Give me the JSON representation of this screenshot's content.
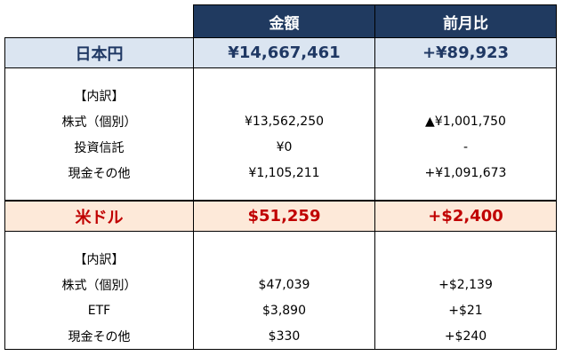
{
  "header": {
    "amount": "金額",
    "change": "前月比"
  },
  "jpy": {
    "label": "日本円",
    "amount": "¥14,667,461",
    "change": "+¥89,923",
    "breakdown_label": "【内訳】",
    "rows": [
      {
        "label": "株式（個別）",
        "amount": "¥13,562,250",
        "change": "▲¥1,001,750"
      },
      {
        "label": "投資信託",
        "amount": "¥0",
        "change": "-"
      },
      {
        "label": "現金その他",
        "amount": "¥1,105,211",
        "change": "+¥1,091,673"
      }
    ]
  },
  "usd": {
    "label": "米ドル",
    "amount": "$51,259",
    "change": "+$2,400",
    "breakdown_label": "【内訳】",
    "rows": [
      {
        "label": "株式（個別）",
        "amount": "$47,039",
        "change": "+$2,139"
      },
      {
        "label": "ETF",
        "amount": "$3,890",
        "change": "+$21"
      },
      {
        "label": "現金その他",
        "amount": "$330",
        "change": "+$240"
      }
    ]
  },
  "colors": {
    "header_bg": "#203a60",
    "jpy_row_bg": "#dbe5f1",
    "jpy_text": "#1f3864",
    "usd_row_bg": "#fde9d9",
    "usd_text": "#c00000"
  }
}
